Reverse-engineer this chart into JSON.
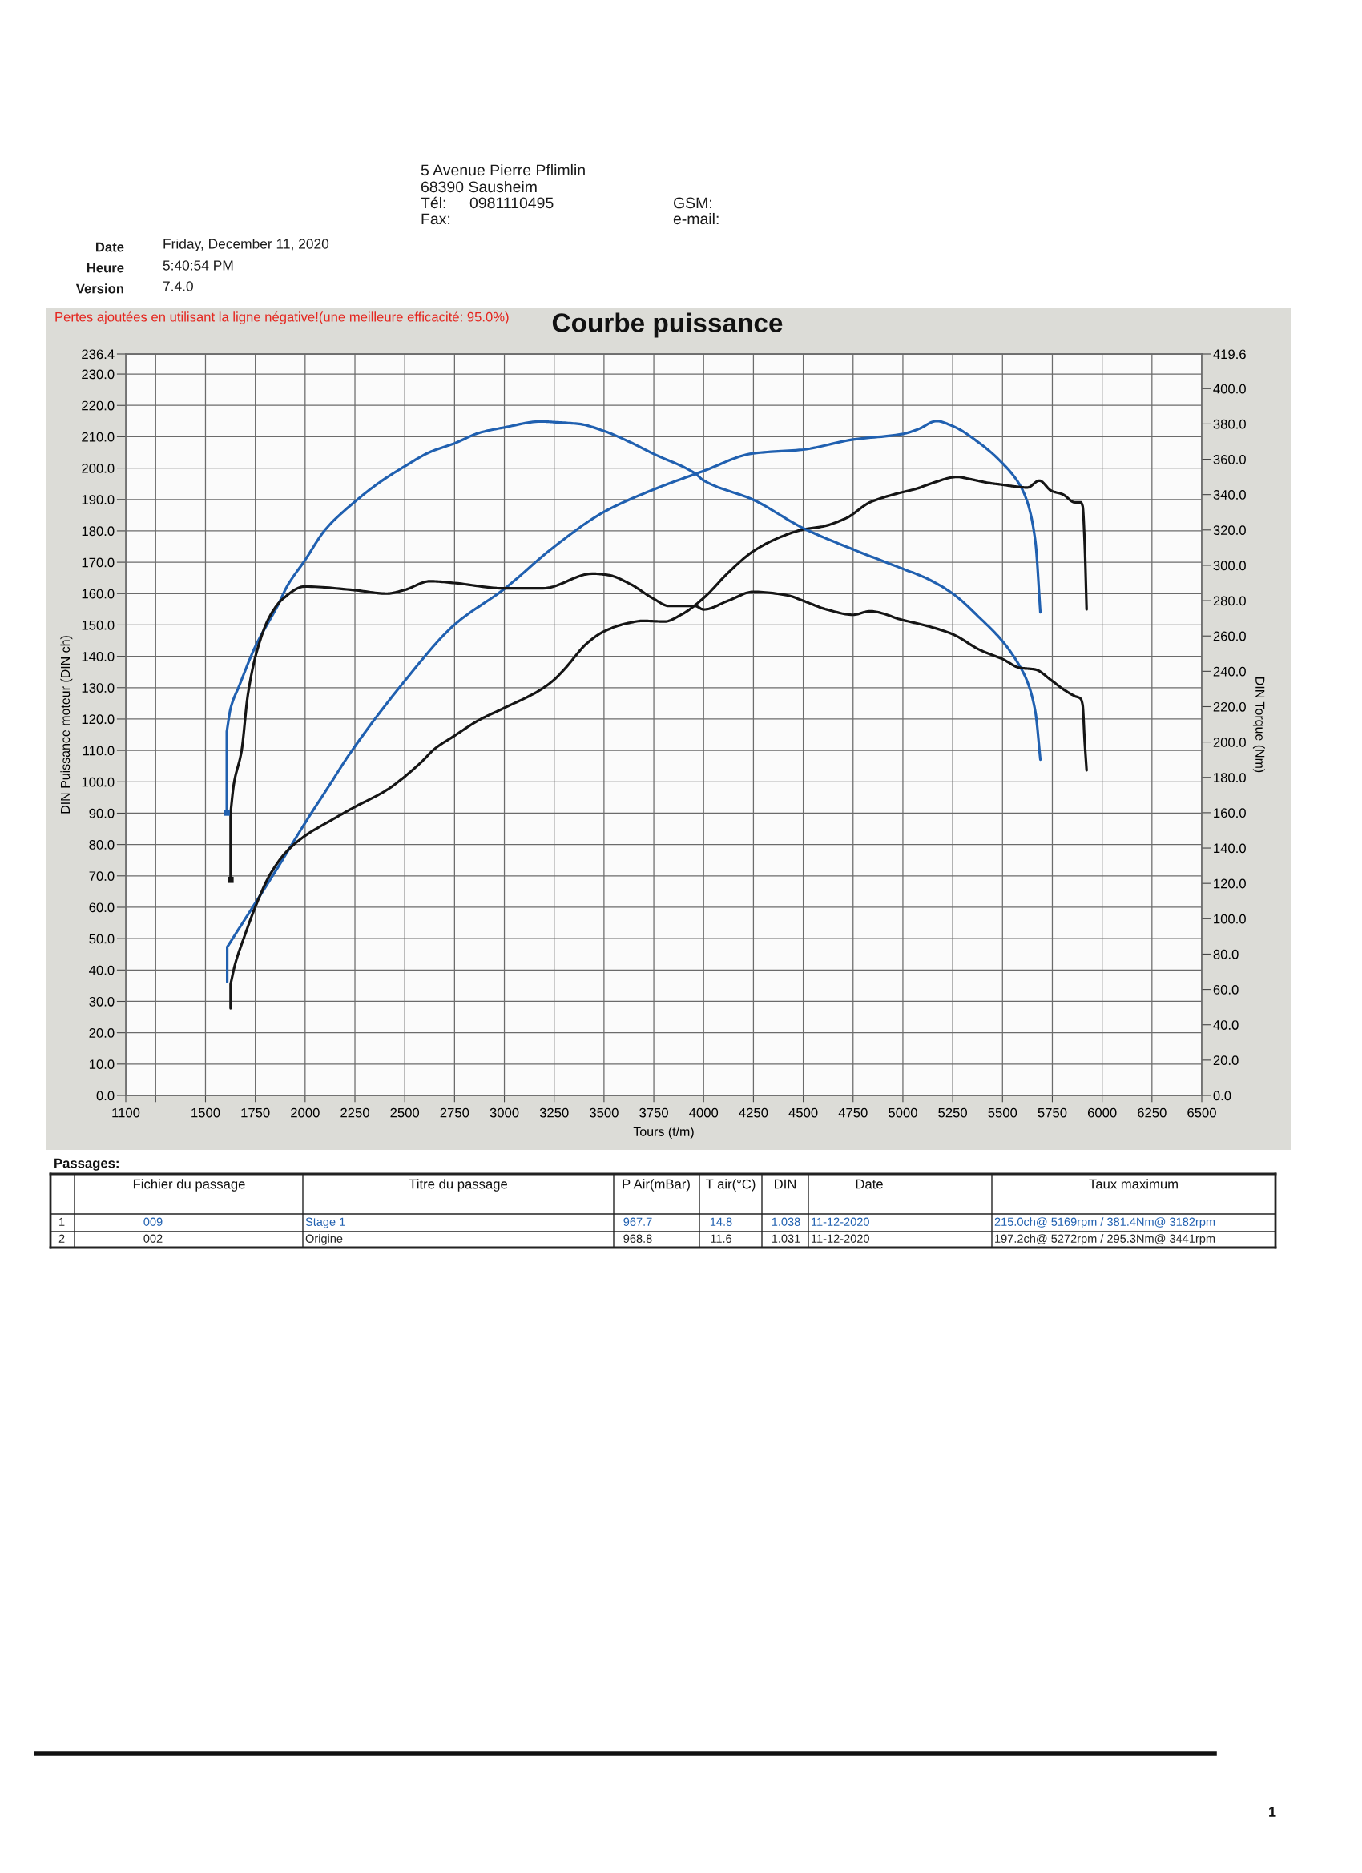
{
  "chart_data": [
    {
      "type": "other",
      "annotations": [
        "5 Avenue Pierre Pflimlin",
        "68390 Sausheim",
        "Tél:",
        "0981110495",
        "GSM:",
        "Fax:",
        "e-mail:",
        "Date",
        "Friday, December 11, 2020",
        "Heure",
        "5:40:54 PM",
        "Version",
        "7.4.0"
      ]
    },
    {
      "type": "line",
      "title": "Courbe puissance",
      "subtitle": "Pertes ajoutées en utilisant la ligne négative!(une meilleure efficacité: 95.0%)",
      "xlabel": "Tours (t/m)",
      "ylabel": "DIN Puissance moteur (DIN ch)",
      "y2label": "DIN Torque (Nm)",
      "xlim": [
        1100,
        6500
      ],
      "xticks": [
        1100,
        {
          "value": 1250,
          "label": null
        },
        1500,
        1750,
        2000,
        2250,
        2500,
        2750,
        3000,
        3250,
        3500,
        3750,
        4000,
        4250,
        4500,
        4750,
        5000,
        5250,
        5500,
        5750,
        6000,
        6250,
        6500
      ],
      "ylim": [
        0,
        236.4
      ],
      "yticks": [
        {
          "value": 0,
          "label": "0.0"
        },
        {
          "value": 10,
          "label": "10.0"
        },
        {
          "value": 20,
          "label": "20.0"
        },
        {
          "value": 30,
          "label": "30.0"
        },
        {
          "value": 40,
          "label": "40.0"
        },
        {
          "value": 50,
          "label": "50.0"
        },
        {
          "value": 60,
          "label": "60.0"
        },
        {
          "value": 70,
          "label": "70.0"
        },
        {
          "value": 80,
          "label": "80.0"
        },
        {
          "value": 90,
          "label": "90.0"
        },
        {
          "value": 100,
          "label": "100.0"
        },
        {
          "value": 110,
          "label": "110.0"
        },
        {
          "value": 120,
          "label": "120.0"
        },
        {
          "value": 130,
          "label": "130.0"
        },
        {
          "value": 140,
          "label": "140.0"
        },
        {
          "value": 150,
          "label": "150.0"
        },
        {
          "value": 160,
          "label": "160.0"
        },
        {
          "value": 170,
          "label": "170.0"
        },
        {
          "value": 180,
          "label": "180.0"
        },
        {
          "value": 190,
          "label": "190.0"
        },
        {
          "value": 200,
          "label": "200.0"
        },
        {
          "value": 210,
          "label": "210.0"
        },
        {
          "value": 220,
          "label": "220.0"
        },
        {
          "value": 230,
          "label": "230.0"
        },
        236.4
      ],
      "y2lim": [
        0,
        419.6
      ],
      "y2ticks": [
        {
          "value": 0,
          "label": "0.0"
        },
        {
          "value": 20,
          "label": "20.0"
        },
        {
          "value": 40,
          "label": "40.0"
        },
        {
          "value": 60,
          "label": "60.0"
        },
        {
          "value": 80,
          "label": "80.0"
        },
        {
          "value": 100,
          "label": "100.0"
        },
        {
          "value": 120,
          "label": "120.0"
        },
        {
          "value": 140,
          "label": "140.0"
        },
        {
          "value": 160,
          "label": "160.0"
        },
        {
          "value": 180,
          "label": "180.0"
        },
        {
          "value": 200,
          "label": "200.0"
        },
        {
          "value": 220,
          "label": "220.0"
        },
        {
          "value": 240,
          "label": "240.0"
        },
        {
          "value": 260,
          "label": "260.0"
        },
        {
          "value": 280,
          "label": "280.0"
        },
        {
          "value": 300,
          "label": "300.0"
        },
        {
          "value": 320,
          "label": "320.0"
        },
        {
          "value": 340,
          "label": "340.0"
        },
        {
          "value": 360,
          "label": "360.0"
        },
        {
          "value": 380,
          "label": "380.0"
        },
        {
          "value": 400,
          "label": "400.0"
        },
        419.6
      ],
      "grid": true,
      "line_style": "solid",
      "series": [
        {
          "color": "#2060b0",
          "x": [
            1609,
            1609,
            1866,
            2000,
            2127,
            2214,
            2497,
            2748,
            2998,
            3249,
            3499,
            3750,
            3957,
            4000,
            4249,
            4498,
            4749,
            5000,
            5080,
            5169,
            5250,
            5388,
            5499,
            5586,
            5625,
            5665,
            5690
          ],
          "values": [
            36.2,
            47.3,
            73,
            86.9,
            99.4,
            108,
            131.9,
            150,
            161.4,
            174.9,
            186,
            193.2,
            198.1,
            199.1,
            204.7,
            205.9,
            209.1,
            210.9,
            212.5,
            215.0,
            213.4,
            207.8,
            201.6,
            194.7,
            189.1,
            176.6,
            154
          ]
        },
        {
          "color": "#2060b0",
          "axis": "y2",
          "x": [
            1607,
            1607,
            1626,
            1670,
            1750,
            1866,
            1909,
            2000,
            2100,
            2250,
            2375,
            2500,
            2625,
            2750,
            2875,
            3000,
            3182,
            3250,
            3375,
            3500,
            3625,
            3750,
            3957,
            4000,
            4250,
            4500,
            4750,
            5000,
            5112,
            5250,
            5388,
            5500,
            5586,
            5625,
            5665,
            5690
          ],
          "values": [
            160,
            206,
            219,
            232,
            254,
            278,
            288,
            303,
            320,
            336,
            347,
            356,
            364,
            369,
            375,
            378,
            381.4,
            381,
            380,
            376,
            370,
            363,
            352,
            348,
            337,
            321,
            309,
            298,
            293,
            284,
            270,
            257,
            243,
            234,
            217,
            190
          ]
        },
        {
          "color": "#151515",
          "x": [
            1626,
            1626,
            1648,
            1692,
            1757,
            1822,
            1909,
            2000,
            2127,
            2244,
            2410,
            2497,
            2585,
            2650,
            2748,
            2868,
            2998,
            3173,
            3249,
            3303,
            3412,
            3499,
            3608,
            3695,
            3804,
            3891,
            4000,
            4124,
            4249,
            4381,
            4498,
            4598,
            4717,
            4835,
            4954,
            5072,
            5151,
            5272,
            5329,
            5428,
            5499,
            5566,
            5625,
            5685,
            5744,
            5803,
            5862,
            5892,
            5902,
            5912,
            5922
          ],
          "values": [
            27.8,
            35.5,
            41.7,
            50.1,
            61.2,
            70.2,
            77.9,
            82.8,
            87.6,
            91.8,
            97.4,
            101.5,
            106.4,
            110.5,
            114.6,
            119.5,
            123.5,
            129,
            132.5,
            136,
            144,
            147.9,
            150.4,
            151.3,
            151.1,
            153.4,
            158.6,
            166.7,
            173.5,
            177.9,
            180.4,
            181.4,
            184.1,
            189.1,
            191.6,
            193.5,
            195.3,
            197.2,
            196.6,
            195.3,
            194.7,
            194.1,
            193.8,
            196,
            192.8,
            191.6,
            189.1,
            189.1,
            187.9,
            176.6,
            155
          ]
        },
        {
          "color": "#151515",
          "axis": "y2",
          "x": [
            1626,
            1626,
            1642,
            1681,
            1713,
            1757,
            1822,
            1888,
            1997,
            2245,
            2410,
            2497,
            2628,
            2748,
            2998,
            3194,
            3441,
            3521,
            3630,
            3750,
            3826,
            3957,
            4000,
            4124,
            4249,
            4421,
            4498,
            4618,
            4749,
            4835,
            5000,
            5112,
            5250,
            5388,
            5499,
            5586,
            5665,
            5744,
            5803,
            5862,
            5892,
            5902,
            5912,
            5922
          ],
          "values": [
            122,
            160,
            176,
            195,
            227,
            251,
            271,
            281,
            288,
            286,
            284,
            286,
            291,
            290,
            287,
            287,
            295.3,
            294.5,
            289.5,
            281,
            277,
            277,
            275,
            280,
            285,
            283,
            280,
            275,
            272,
            274,
            269,
            266,
            261,
            252,
            247,
            242,
            241,
            235,
            230,
            226,
            224.5,
            221,
            201,
            184
          ]
        },
        {
          "type": "scatter",
          "marker": "square",
          "color": "#2060b0",
          "axis": "y2",
          "x": [
            1607
          ],
          "values": [
            160
          ]
        },
        {
          "type": "scatter",
          "marker": "square",
          "color": "#151515",
          "axis": "y2",
          "x": [
            1626
          ],
          "values": [
            122
          ]
        }
      ]
    },
    {
      "type": "other",
      "title": "Passages:",
      "colors": [
        "#2060b0",
        "#222222"
      ],
      "annotations": [
        "Fichier du passage",
        "Titre du passage",
        "P Air(mBar)",
        "T air(°C)",
        "DIN",
        "Date",
        "Taux maximum",
        "1",
        "009",
        "Stage 1",
        "967.7",
        "14.8",
        "1.038",
        "11-12-2020",
        "215.0ch@ 5169rpm / 381.4Nm@ 3182rpm",
        "2",
        "002",
        "Origine",
        "968.8",
        "11.6",
        "1.031",
        "11-12-2020",
        "197.2ch@ 5272rpm / 295.3Nm@ 3441rpm"
      ]
    },
    {
      "type": "other",
      "annotations": [
        "1"
      ]
    }
  ]
}
